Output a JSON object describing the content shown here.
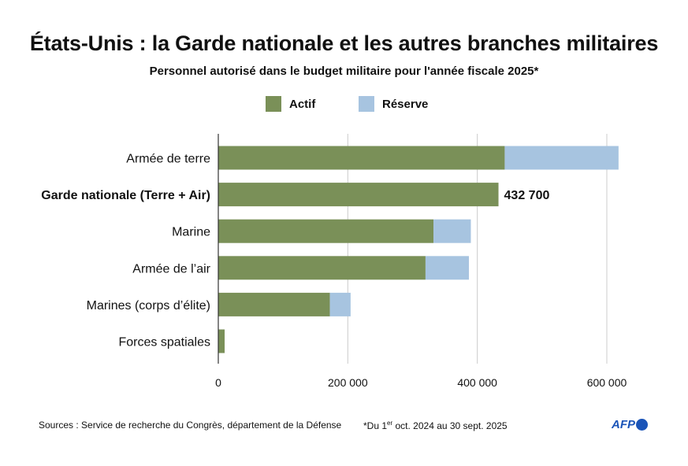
{
  "title": "États-Unis : la Garde nationale et les autres branches militaires",
  "subtitle": "Personnel autorisé dans le budget militaire pour l'année fiscale 2025*",
  "colors": {
    "actif": "#7a9058",
    "reserve": "#a7c4e0",
    "brand": "#1a54b8",
    "grid": "#cccccc",
    "axis": "#333333"
  },
  "legend": [
    {
      "label": "Actif",
      "color": "#7a9058"
    },
    {
      "label": "Réserve",
      "color": "#a7c4e0"
    }
  ],
  "chart_data": {
    "type": "bar",
    "orientation": "horizontal",
    "stacked": true,
    "categories": [
      "Armée de terre",
      "Garde nationale (Terre + Air)",
      "Marine",
      "Armée de l’air",
      "Marines (corps d’élite)",
      "Forces spatiales"
    ],
    "highlighted_category": "Garde nationale (Terre + Air)",
    "series": [
      {
        "name": "Actif",
        "values": [
          442300,
          432700,
          332300,
          320000,
          172300,
          9800
        ]
      },
      {
        "name": "Réserve",
        "values": [
          175800,
          0,
          57700,
          67000,
          32000,
          0
        ]
      }
    ],
    "data_labels": [
      {
        "category": "Garde nationale (Terre + Air)",
        "text": "432 700"
      }
    ],
    "xlim": [
      0,
      650000
    ],
    "xticks": [
      0,
      200000,
      400000,
      600000
    ],
    "xtick_labels": [
      "0",
      "200 000",
      "400 000",
      "600 000"
    ],
    "grid": "vertical",
    "legend_position": "top"
  },
  "footer": {
    "sources": "Sources : Service de recherche du Congrès, département de la Défense",
    "note_prefix": "*Du 1",
    "note_sup": "er",
    "note_suffix": " oct. 2024 au 30 sept. 2025",
    "logo_text": "AFP"
  }
}
